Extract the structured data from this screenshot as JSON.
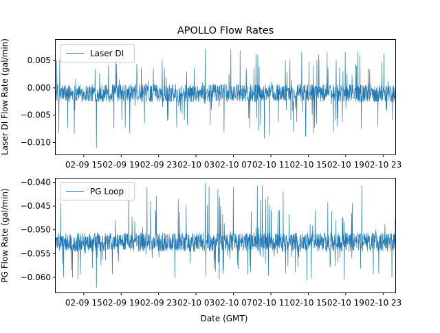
{
  "chart_data": {
    "type": "line",
    "title": "APOLLO Flow Rates",
    "xlabel": "Date (GMT)",
    "line_color": "#1f77b4",
    "x_ticks": [
      "02-09 15",
      "02-09 19",
      "02-09 23",
      "02-10 03",
      "02-10 07",
      "02-10 11",
      "02-10 15",
      "02-10 19",
      "02-10 23"
    ],
    "x_range_hours": [
      12.0,
      48.3
    ],
    "x_tick_hours": [
      15,
      19,
      23,
      27,
      31,
      35,
      39,
      43,
      47
    ],
    "panels": [
      {
        "series_name": "Laser DI",
        "ylabel": "Laser DI Flow Rate (gal/min)",
        "ylim": [
          -0.0122,
          0.0088
        ],
        "y_ticks": [
          0.005,
          0.0,
          -0.005,
          -0.01
        ],
        "y_tick_labels": [
          "0.005",
          "0.000",
          "−0.005",
          "−0.010"
        ],
        "legend": "upper left",
        "baseline": -0.001,
        "band_low": -0.0026,
        "band_high": 0.0007,
        "spike_max": 0.0071,
        "spike_min": -0.011
      },
      {
        "series_name": "PG Loop",
        "ylabel": "PG Flow Rate (gal/min)",
        "ylim": [
          -0.0632,
          -0.0392
        ],
        "y_ticks": [
          -0.04,
          -0.045,
          -0.05,
          -0.055,
          -0.06
        ],
        "y_tick_labels": [
          "−0.040",
          "−0.045",
          "−0.050",
          "−0.055",
          "−0.060"
        ],
        "legend": "upper left",
        "baseline": -0.0522,
        "band_low": -0.0546,
        "band_high": -0.0506,
        "spike_max": -0.0402,
        "spike_min": -0.0622
      }
    ]
  }
}
